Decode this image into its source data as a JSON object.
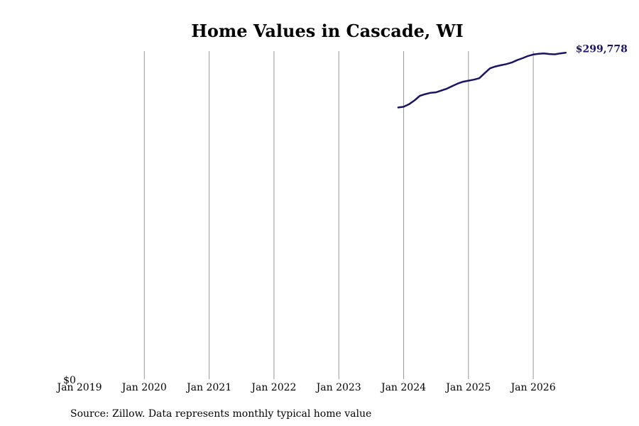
{
  "chart_data": {
    "type": "line",
    "title": "Home Values in Cascade, WI",
    "xlabel": "",
    "ylabel": "",
    "x_ticks": [
      "Jan 2019",
      "Jan 2020",
      "Jan 2021",
      "Jan 2022",
      "Jan 2023",
      "Jan 2024",
      "Jan 2025",
      "Jan 2026"
    ],
    "y_ticks": [
      "$0"
    ],
    "ylim": [
      0,
      300000
    ],
    "xlim": [
      "2019-01",
      "2026-07"
    ],
    "grid": "vertical",
    "line_color": "#1b1464",
    "series": [
      {
        "x": [
          "2023-12",
          "2024-01",
          "2024-02",
          "2024-03",
          "2024-04",
          "2024-05",
          "2024-06",
          "2024-07",
          "2024-08",
          "2024-09",
          "2024-10",
          "2024-11",
          "2024-12",
          "2025-01",
          "2025-02",
          "2025-03",
          "2025-04",
          "2025-05",
          "2025-06",
          "2025-07",
          "2025-08",
          "2025-09",
          "2025-10",
          "2025-11",
          "2025-12",
          "2026-01",
          "2026-02",
          "2026-03",
          "2026-04",
          "2026-05",
          "2026-06",
          "2026-07"
        ],
        "values": [
          249500,
          250200,
          252500,
          256000,
          260200,
          261800,
          263000,
          263500,
          265200,
          266800,
          269200,
          271500,
          273200,
          274200,
          275100,
          276400,
          281000,
          285500,
          287200,
          288300,
          289400,
          290800,
          293000,
          294800,
          296800,
          298200,
          298800,
          299200,
          298600,
          298400,
          299200,
          299778
        ]
      }
    ],
    "end_label": "$299,778",
    "source": "Source: Zillow. Data represents monthly typical home value"
  }
}
